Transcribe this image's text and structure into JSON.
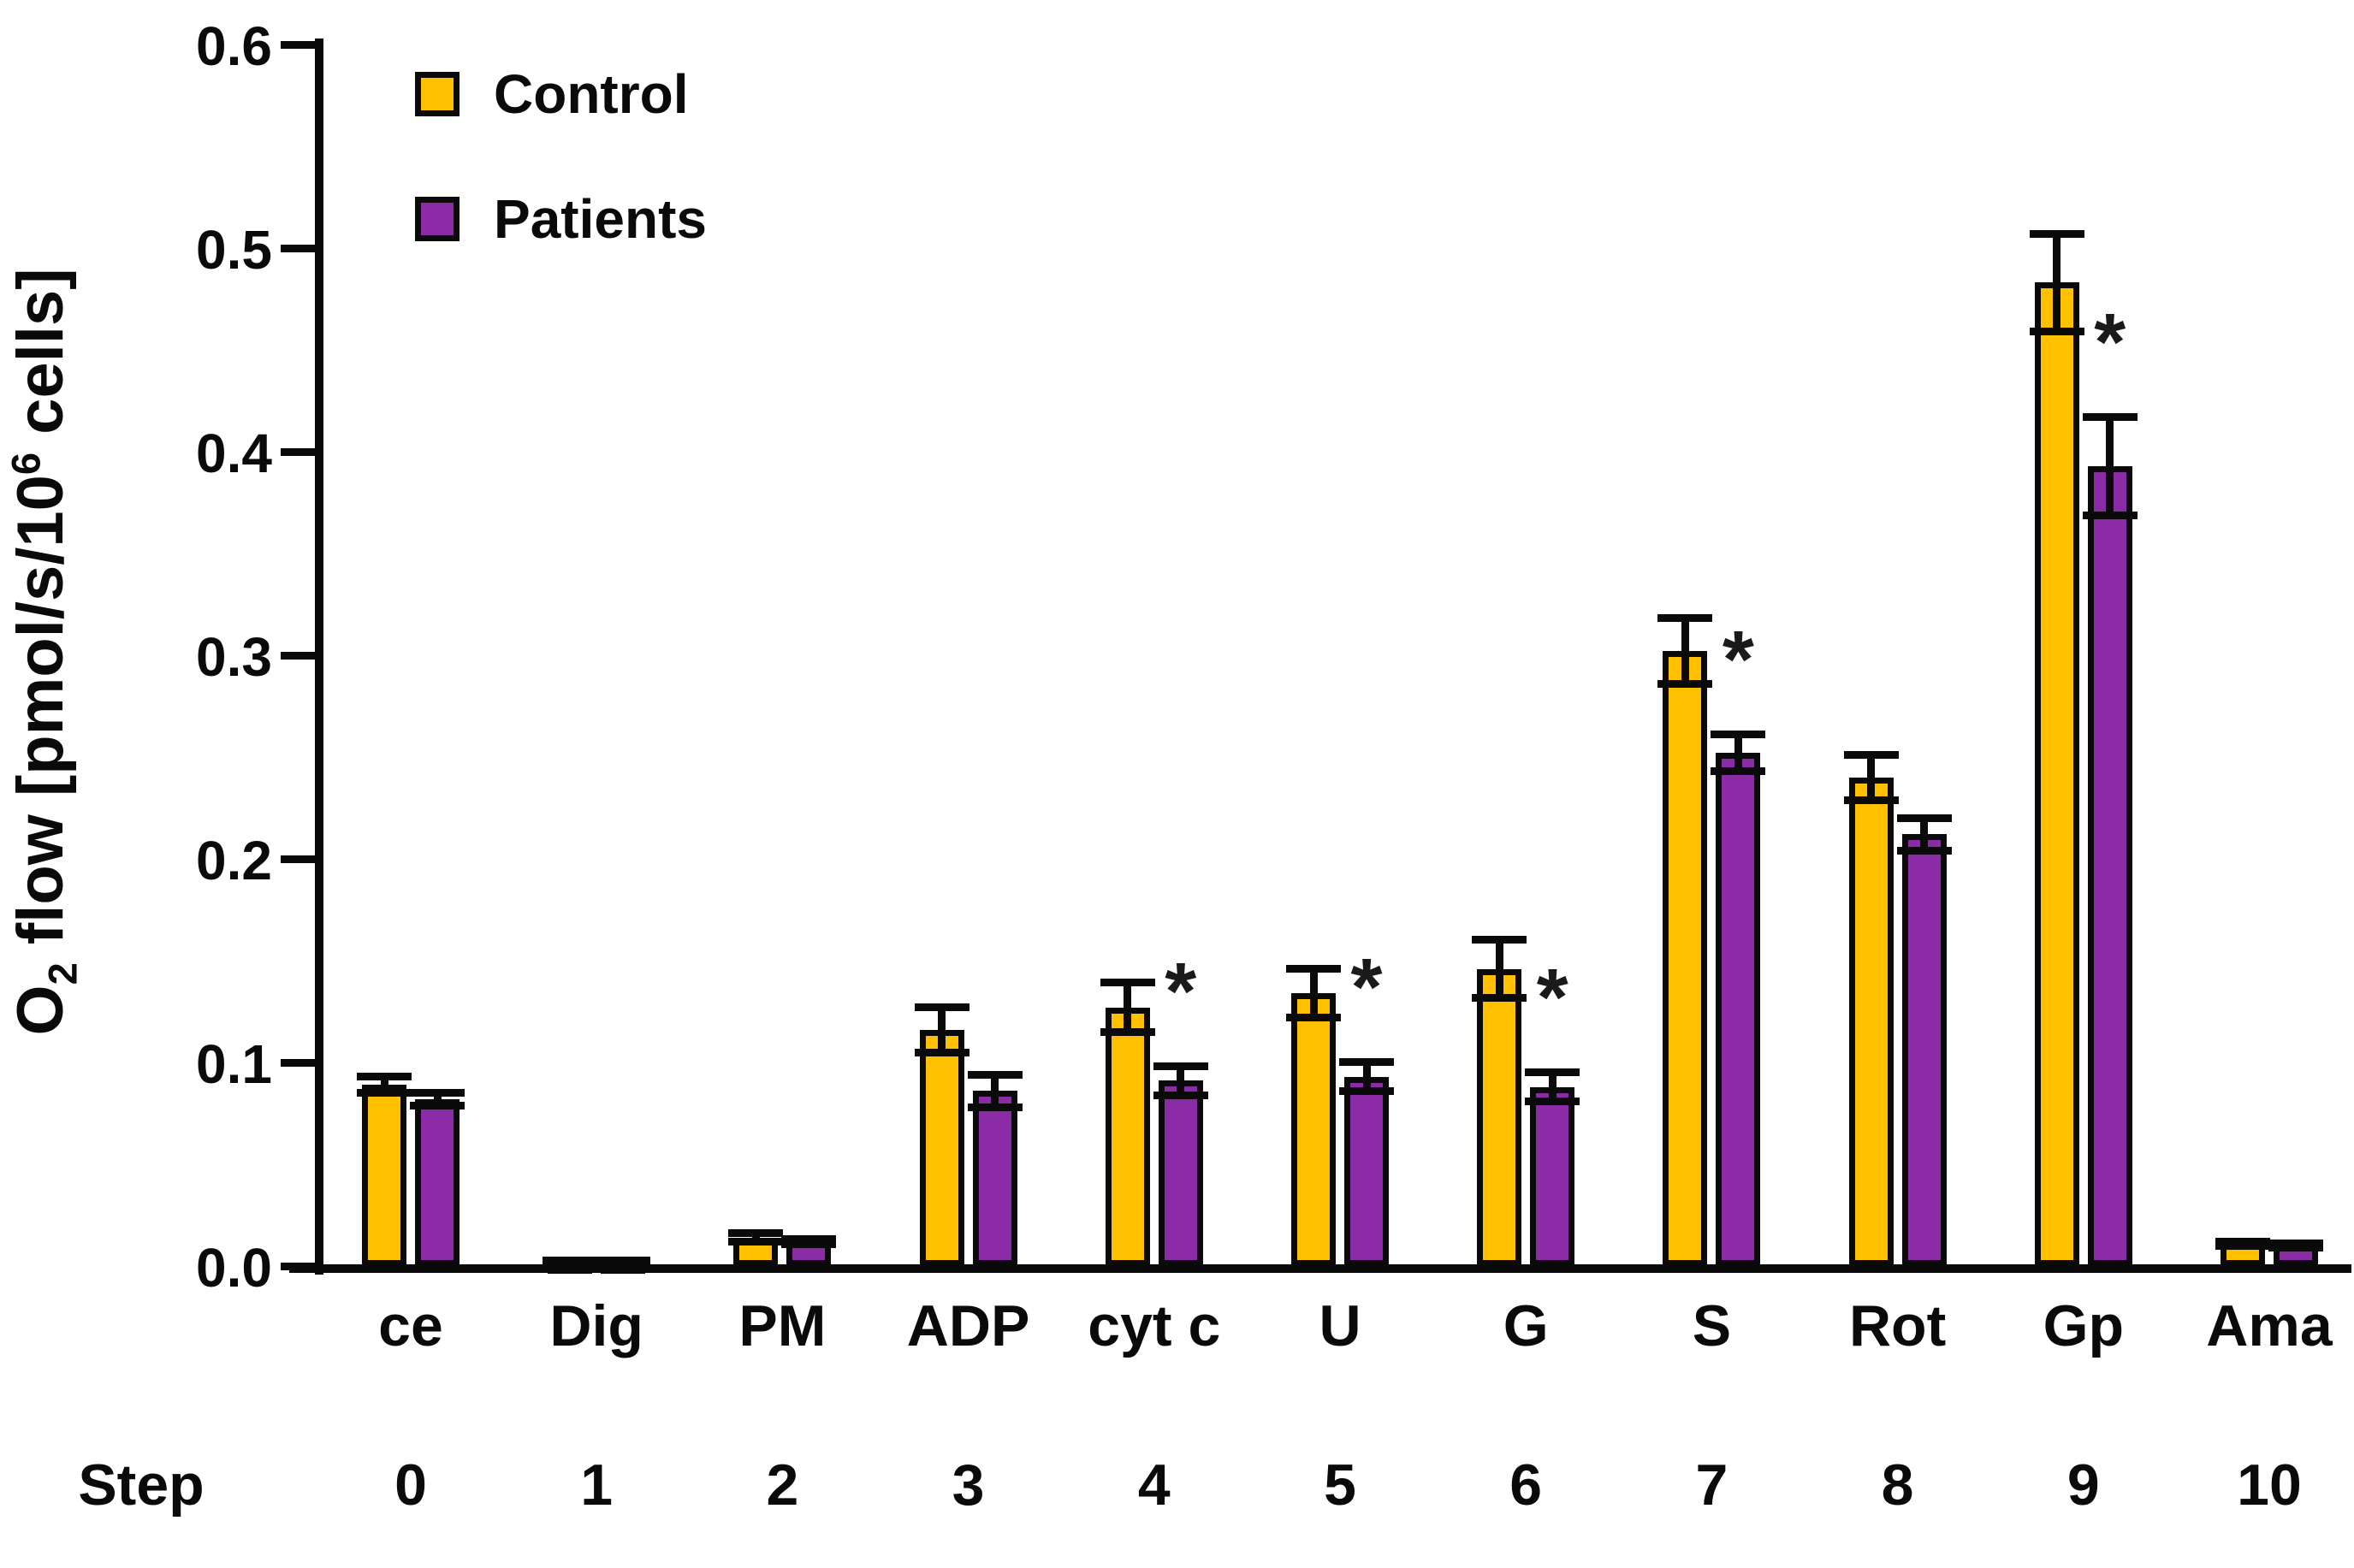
{
  "chart_data": {
    "type": "bar",
    "title": "",
    "ylabel": "O2 flow [pmol/s/10^6 cells]",
    "ylabel_parts": {
      "pre": "O",
      "sub": "2",
      "mid": " flow [pmol/s/10",
      "sup": "6",
      "post": " cells]"
    },
    "ylim": [
      0.0,
      0.6
    ],
    "ytick_values": [
      0.0,
      0.1,
      0.2,
      0.3,
      0.4,
      0.5,
      0.6
    ],
    "ytick_labels": [
      "0.0",
      "0.1",
      "0.2",
      "0.3",
      "0.4",
      "0.5",
      "0.6"
    ],
    "grid": false,
    "legend_position": "top-left-inside",
    "categories": [
      "ce",
      "Dig",
      "PM",
      "ADP",
      "cyt c",
      "U",
      "G",
      "S",
      "Rot",
      "Gp",
      "Ama"
    ],
    "step_label": "Step",
    "steps": [
      "0",
      "1",
      "2",
      "3",
      "4",
      "5",
      "6",
      "7",
      "8",
      "9",
      "10"
    ],
    "significance_marker": "*",
    "colors": {
      "control": "#FFC000",
      "patients": "#8C2BA6",
      "axis": "#0a0a0a"
    },
    "legend": [
      {
        "name": "Control",
        "color": "#FFC000"
      },
      {
        "name": "Patients",
        "color": "#8C2BA6"
      }
    ],
    "series": [
      {
        "name": "Control",
        "color": "#FFC000",
        "values": [
          0.089,
          0.002,
          0.014,
          0.116,
          0.127,
          0.134,
          0.146,
          0.302,
          0.24,
          0.483,
          0.011
        ],
        "errors": [
          0.006,
          0.001,
          0.004,
          0.013,
          0.014,
          0.014,
          0.016,
          0.018,
          0.013,
          0.026,
          0.003
        ],
        "significant": [
          false,
          false,
          false,
          false,
          false,
          false,
          false,
          false,
          false,
          false,
          false
        ]
      },
      {
        "name": "Patients",
        "color": "#8C2BA6",
        "values": [
          0.082,
          0.002,
          0.012,
          0.086,
          0.091,
          0.093,
          0.088,
          0.252,
          0.212,
          0.393,
          0.01
        ],
        "errors": [
          0.005,
          0.001,
          0.003,
          0.01,
          0.009,
          0.009,
          0.009,
          0.011,
          0.01,
          0.026,
          0.003
        ],
        "significant": [
          false,
          false,
          false,
          false,
          true,
          true,
          true,
          true,
          false,
          true,
          false
        ]
      }
    ]
  }
}
